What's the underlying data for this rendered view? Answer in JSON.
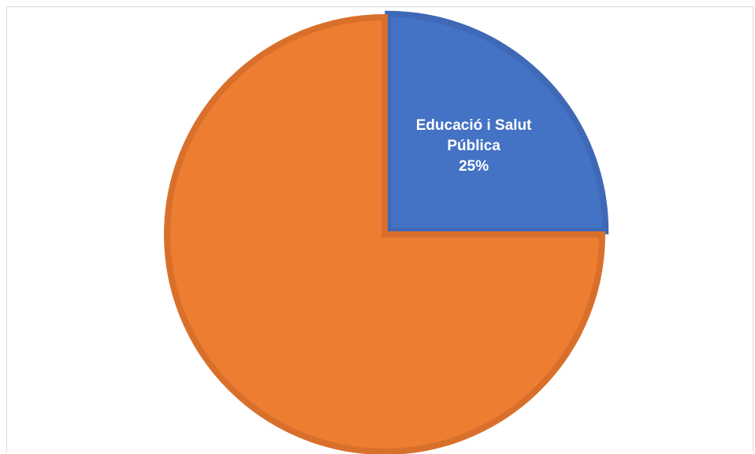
{
  "chart_data": {
    "type": "pie",
    "title": "",
    "slices": [
      {
        "label": "Educació i Salut Pública",
        "label_lines": [
          "Educació i Salut",
          "Pública"
        ],
        "value": 25,
        "value_label": "25%",
        "color": "#4472c4",
        "border": "#3f68b6",
        "exploded": true
      },
      {
        "label": "",
        "label_lines": [],
        "value": 75,
        "value_label": "",
        "color": "#ed7d31",
        "border": "#d8702c",
        "exploded": false
      }
    ],
    "start_angle_deg": 0,
    "direction": "clockwise",
    "legend": "none"
  }
}
